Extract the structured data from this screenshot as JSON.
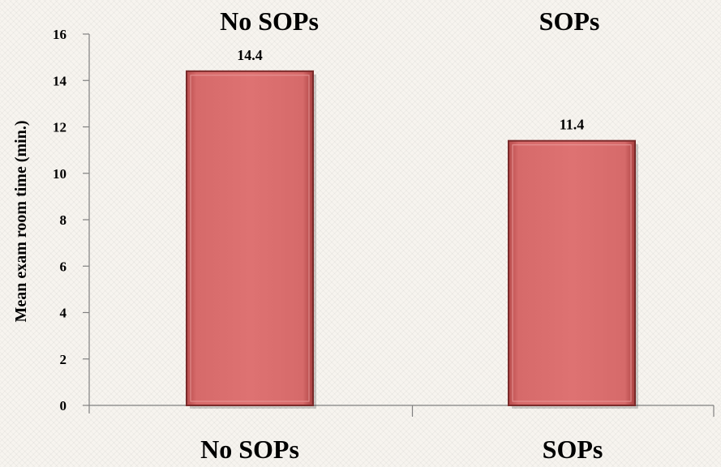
{
  "chart_data": {
    "type": "bar",
    "categories": [
      "No SOPs",
      "SOPs"
    ],
    "values": [
      14.4,
      11.4
    ],
    "data_labels": [
      "14.4",
      "11.4"
    ],
    "top_labels": [
      "No SOPs",
      "SOPs"
    ],
    "xlabel": "",
    "ylabel": "Mean exam room time (min.)",
    "ylim": [
      0,
      16
    ],
    "yticks": [
      0,
      2,
      4,
      6,
      8,
      10,
      12,
      14,
      16
    ],
    "grid": false,
    "legend": "none",
    "bar_color": "#d96b6b",
    "bar_edge_color": "#7a2a2a"
  }
}
